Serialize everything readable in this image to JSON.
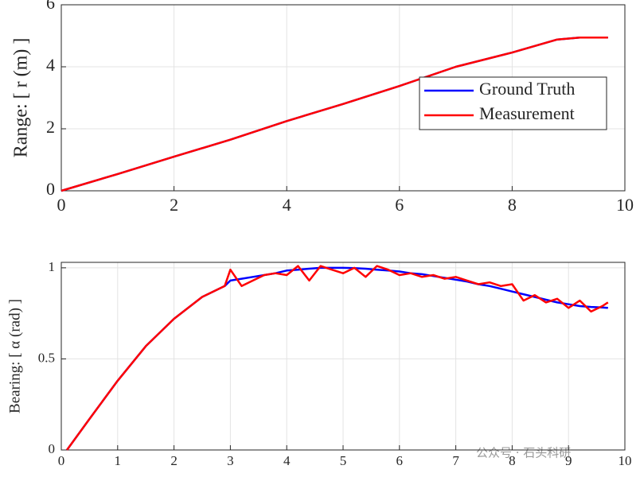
{
  "chart_data": [
    {
      "type": "line",
      "ylabel": "Range: [ r (m) ]",
      "x": [
        0,
        1,
        2,
        3,
        4,
        5,
        6,
        7,
        8,
        8.8,
        9.2,
        9.7
      ],
      "series": [
        {
          "name": "Ground Truth",
          "color": "#0000ff",
          "values": [
            0,
            0.54,
            1.1,
            1.65,
            2.25,
            2.8,
            3.38,
            4.0,
            4.46,
            4.88,
            4.94,
            4.94
          ]
        },
        {
          "name": "Measurement",
          "color": "#ff0000",
          "values": [
            0,
            0.54,
            1.1,
            1.65,
            2.25,
            2.8,
            3.38,
            4.0,
            4.46,
            4.88,
            4.94,
            4.94
          ]
        }
      ],
      "xlim": [
        0,
        10
      ],
      "xticks": [
        0,
        2,
        4,
        6,
        8,
        10
      ],
      "ylim": [
        0,
        6
      ],
      "yticks": [
        0,
        2,
        4,
        6
      ],
      "grid": true,
      "legend": "right"
    },
    {
      "type": "line",
      "ylabel": "Bearing: [ α (rad) ]",
      "x": [
        0.1,
        0.5,
        1.0,
        1.5,
        2.0,
        2.5,
        2.9,
        3.0,
        3.2,
        3.4,
        3.6,
        3.8,
        4.0,
        4.2,
        4.4,
        4.6,
        4.8,
        5.0,
        5.2,
        5.4,
        5.6,
        5.8,
        6.0,
        6.2,
        6.4,
        6.6,
        6.8,
        7.0,
        7.2,
        7.4,
        7.6,
        7.8,
        8.0,
        8.2,
        8.4,
        8.6,
        8.8,
        9.0,
        9.2,
        9.4,
        9.6,
        9.7
      ],
      "series": [
        {
          "name": "Ground Truth",
          "color": "#0000ff",
          "values": [
            0,
            0.17,
            0.38,
            0.57,
            0.72,
            0.84,
            0.9,
            0.93,
            0.94,
            0.95,
            0.96,
            0.97,
            0.985,
            0.99,
            0.995,
            1.0,
            1.0,
            1.0,
            0.998,
            0.995,
            0.99,
            0.985,
            0.98,
            0.97,
            0.965,
            0.955,
            0.945,
            0.935,
            0.925,
            0.91,
            0.9,
            0.885,
            0.87,
            0.855,
            0.84,
            0.825,
            0.81,
            0.8,
            0.79,
            0.785,
            0.782,
            0.78
          ]
        },
        {
          "name": "Measurement",
          "color": "#ff0000",
          "values": [
            0,
            0.17,
            0.38,
            0.57,
            0.72,
            0.84,
            0.9,
            0.99,
            0.9,
            0.93,
            0.96,
            0.97,
            0.96,
            1.01,
            0.93,
            1.01,
            0.99,
            0.97,
            1.0,
            0.95,
            1.01,
            0.99,
            0.96,
            0.97,
            0.95,
            0.96,
            0.94,
            0.95,
            0.93,
            0.91,
            0.92,
            0.9,
            0.91,
            0.82,
            0.85,
            0.81,
            0.83,
            0.78,
            0.82,
            0.76,
            0.79,
            0.81
          ]
        }
      ],
      "xlim": [
        0,
        10
      ],
      "xticks": [
        0,
        1,
        2,
        3,
        4,
        5,
        6,
        7,
        8,
        9,
        10
      ],
      "ylim": [
        0,
        1.03
      ],
      "yticks": [
        0,
        0.5,
        1
      ],
      "grid": true
    }
  ],
  "watermark": "公众号 · 石头科研"
}
